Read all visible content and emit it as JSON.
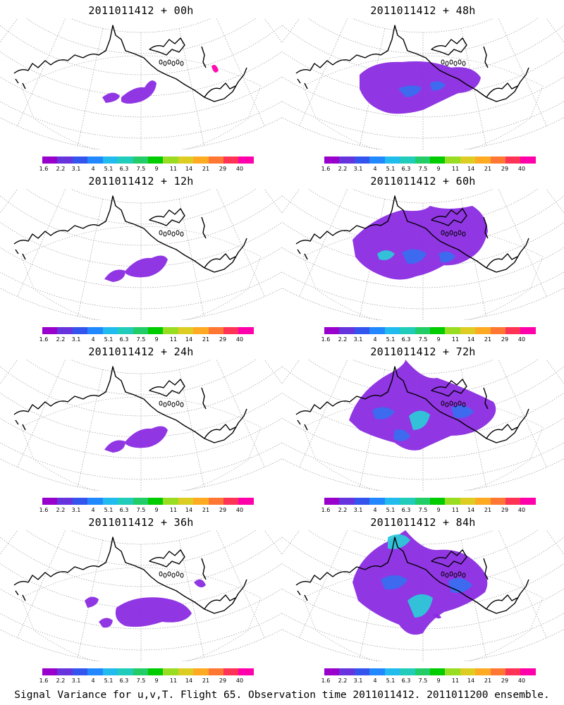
{
  "panels": [
    {
      "title": "2011011412 + 00h",
      "level": 0
    },
    {
      "title": "2011011412 + 48h",
      "level": 3
    },
    {
      "title": "2011011412 + 12h",
      "level": 1
    },
    {
      "title": "2011011412 + 60h",
      "level": 4
    },
    {
      "title": "2011011412 + 24h",
      "level": 1
    },
    {
      "title": "2011011412 + 72h",
      "level": 5
    },
    {
      "title": "2011011412 + 36h",
      "level": 2
    },
    {
      "title": "2011011412 + 84h",
      "level": 6
    }
  ],
  "legend": {
    "labels": [
      "1.6",
      "2.2",
      "3.1",
      "4",
      "5.1",
      "6.3",
      "7.5",
      "9",
      "11",
      "14",
      "21",
      "29",
      "40"
    ],
    "colors": [
      "#9900cc",
      "#6633dd",
      "#3355ee",
      "#2288ff",
      "#22bbee",
      "#22ccbb",
      "#22cc66",
      "#00cc00",
      "#99dd22",
      "#ddcc22",
      "#ffaa22",
      "#ff7733",
      "#ff3355",
      "#ff00aa"
    ]
  },
  "footer": "Signal Variance for u,v,T. Flight 65. Observation time 2011011412. 2011011200 ensemble.",
  "colors": {
    "variance_low": "#8a2be2",
    "variance_mid": "#3a6ef0",
    "variance_high": "#2ec8d8",
    "coast": "#000000",
    "grid": "#888888"
  }
}
